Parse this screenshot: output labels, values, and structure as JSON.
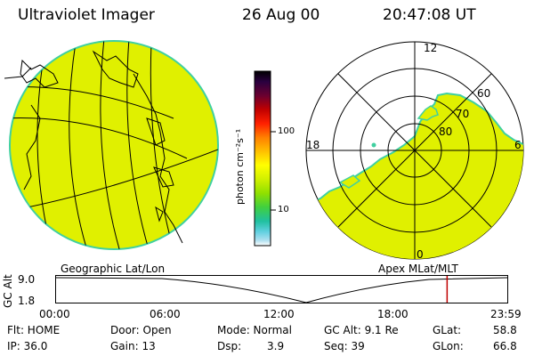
{
  "header": {
    "title": "Ultraviolet Imager",
    "date": "26 Aug 00",
    "time": "20:47:08 UT"
  },
  "left_panel": {
    "caption": "Geographic Lat/Lon"
  },
  "colorbar": {
    "unit_label": "photon cm⁻²s⁻¹",
    "ticks": [
      "100",
      "10"
    ],
    "colors": [
      "#000000",
      "#2a003f",
      "#6a0030",
      "#c00000",
      "#ff2000",
      "#ff8000",
      "#ffc000",
      "#ffff00",
      "#d0f000",
      "#90e000",
      "#40d040",
      "#20c0a0",
      "#60d0e0",
      "#b0e0f0",
      "#ffffff"
    ]
  },
  "right_panel": {
    "caption": "Apex MLat/MLT",
    "mlt_labels": {
      "top": "12",
      "left": "18",
      "right": "6",
      "bottom": "0"
    },
    "lat_labels": [
      "60",
      "70",
      "80"
    ]
  },
  "altitude_plot": {
    "ylabel": "GC Alt",
    "yticks": [
      "9.0",
      "1.8"
    ],
    "xticks": [
      "00:00",
      "06:00",
      "12:00",
      "18:00",
      "23:59"
    ],
    "current_time_fraction": 0.8666
  },
  "footer": {
    "flt": "Flt: HOME",
    "ip": "IP: 36.0",
    "door": "Door: Open",
    "gain": "Gain: 13",
    "mode": "Mode: Normal",
    "dsp_label": "Dsp:",
    "dsp_value": "3.9",
    "gc_alt": "GC Alt: 9.1 Re",
    "seq": "Seq: 39",
    "glat_label": "GLat:",
    "glat_value": "58.8",
    "glon_label": "GLon:",
    "glon_value": "66.8"
  },
  "colors": {
    "image_fill": "#e0f000",
    "image_edge": "#40d0a0",
    "marker": "#c00000"
  }
}
